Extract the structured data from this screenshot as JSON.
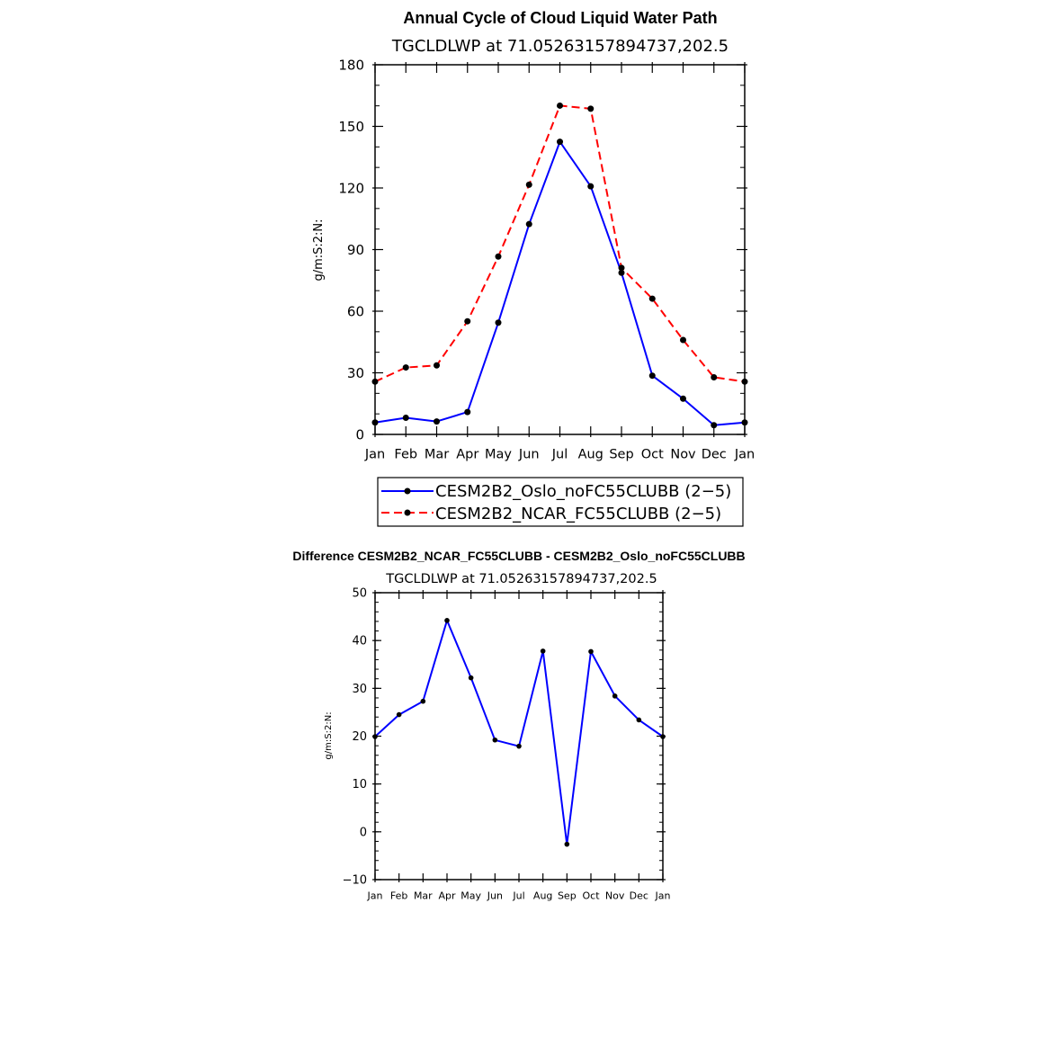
{
  "chart_data": [
    {
      "type": "line",
      "title": "Annual Cycle of Cloud Liquid Water Path",
      "subtitle": "TGCLDLWP  at  71.05263157894737,202.5",
      "xlabel": "",
      "ylabel": "g/m:S:2:N:",
      "ylim": [
        0,
        180
      ],
      "yticks": [
        "0",
        "30",
        "60",
        "90",
        "120",
        "150",
        "180"
      ],
      "ytick_values": [
        0,
        30,
        60,
        90,
        120,
        150,
        180
      ],
      "categories": [
        "Jan",
        "Feb",
        "Mar",
        "Apr",
        "May",
        "Jun",
        "Jul",
        "Aug",
        "Sep",
        "Oct",
        "Nov",
        "Dec",
        "Jan"
      ],
      "series": [
        {
          "name": "CESM2B2_Oslo_noFC55CLUBB (2−5)",
          "color": "#0000ff",
          "dash": "solid",
          "values": [
            5.8,
            8.1,
            6.3,
            10.9,
            54.4,
            102.4,
            142.5,
            120.8,
            78.7,
            28.6,
            17.4,
            4.5,
            5.8
          ]
        },
        {
          "name": "CESM2B2_NCAR_FC55CLUBB (2−5)",
          "color": "#ff0000",
          "dash": "dashed",
          "values": [
            25.7,
            32.6,
            33.6,
            55.1,
            86.6,
            121.6,
            160.1,
            158.6,
            81.1,
            66.1,
            46.0,
            27.8,
            25.7
          ]
        }
      ],
      "legend": "bottom"
    },
    {
      "type": "line",
      "title": "Difference CESM2B2_NCAR_FC55CLUBB - CESM2B2_Oslo_noFC55CLUBB",
      "subtitle": "TGCLDLWP  at  71.05263157894737,202.5",
      "xlabel": "",
      "ylabel": "g/m:S:2:N:",
      "ylim": [
        -10,
        50
      ],
      "yticks": [
        "−10",
        "0",
        "10",
        "20",
        "30",
        "40",
        "50"
      ],
      "ytick_values": [
        -10,
        0,
        10,
        20,
        30,
        40,
        50
      ],
      "categories": [
        "Jan",
        "Feb",
        "Mar",
        "Apr",
        "May",
        "Jun",
        "Jul",
        "Aug",
        "Sep",
        "Oct",
        "Nov",
        "Dec",
        "Jan"
      ],
      "series": [
        {
          "name": "Difference",
          "color": "#0000ff",
          "dash": "solid",
          "values": [
            19.9,
            24.5,
            27.3,
            44.2,
            32.2,
            19.2,
            17.9,
            37.8,
            -2.6,
            37.7,
            28.4,
            23.4,
            19.9
          ]
        }
      ]
    }
  ]
}
